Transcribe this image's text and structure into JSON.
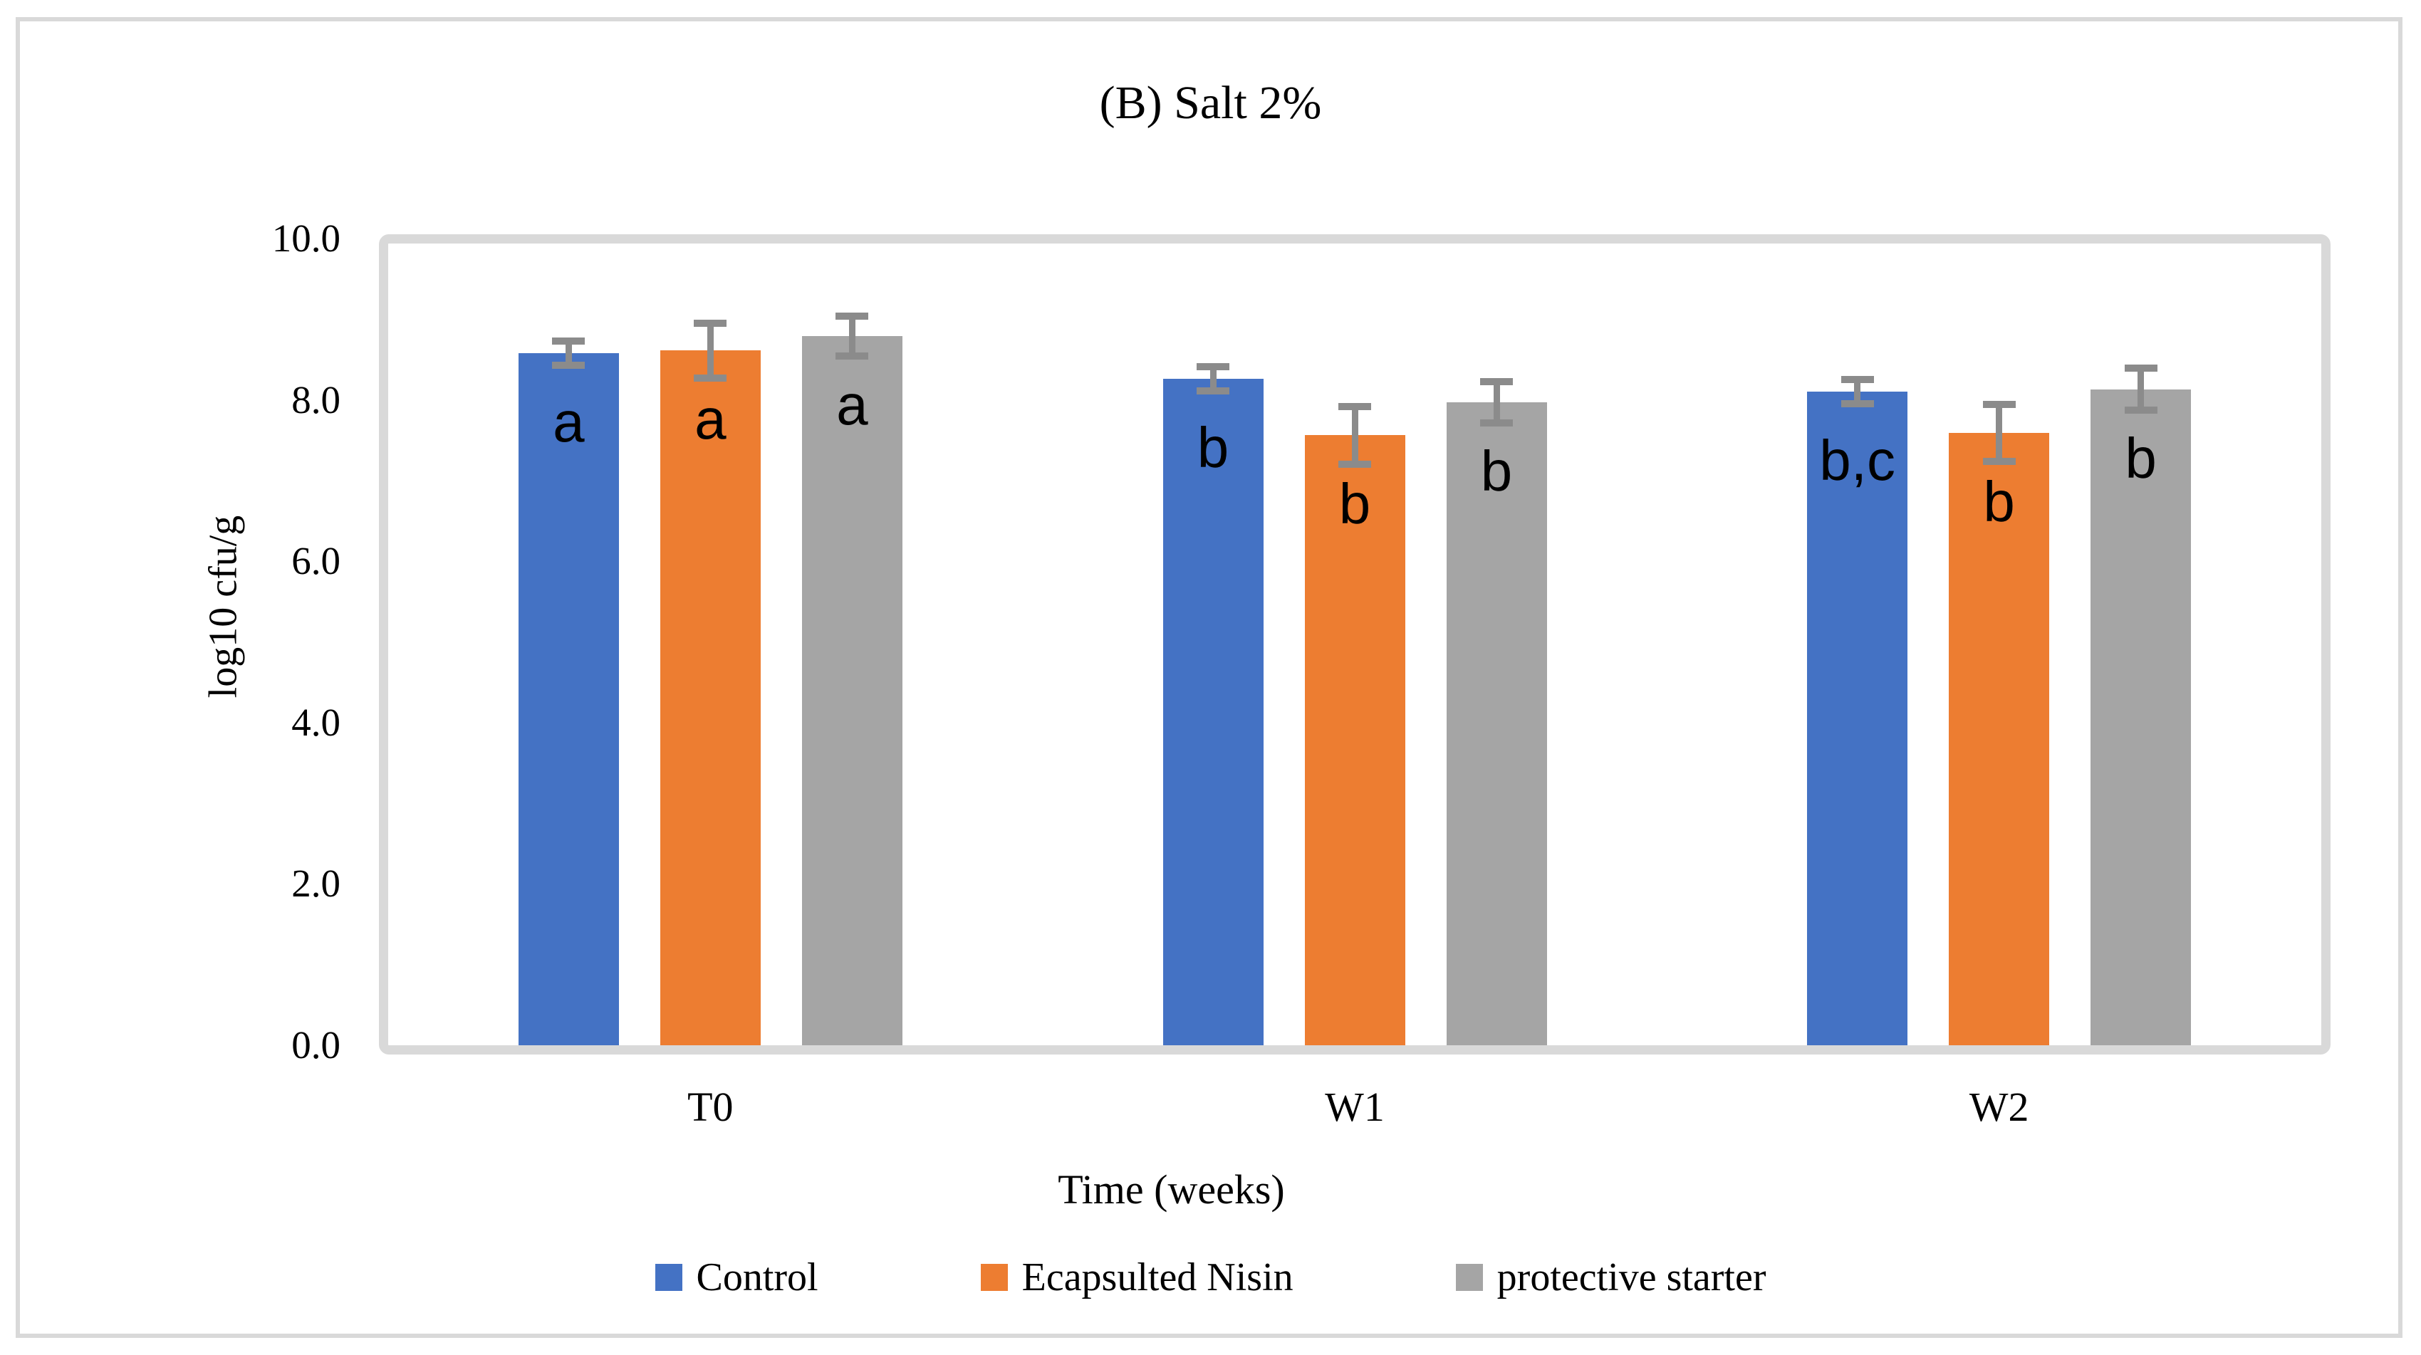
{
  "figure": {
    "title": "(B) Salt 2%"
  },
  "chart_data": {
    "type": "bar",
    "title": "(B) Salt 2%",
    "categories": [
      "T0",
      "W1",
      "W2"
    ],
    "series": [
      {
        "name": "Control",
        "color": "#4472C4",
        "values": [
          8.58,
          8.26,
          8.1
        ],
        "errors": [
          0.15,
          0.15,
          0.15
        ],
        "letters": [
          "a",
          "b",
          "b,c"
        ]
      },
      {
        "name": "Ecapsulted Nisin",
        "color": "#ED7D31",
        "values": [
          8.61,
          7.56,
          7.59
        ],
        "errors": [
          0.34,
          0.36,
          0.35
        ],
        "letters": [
          "a",
          "b",
          "b"
        ]
      },
      {
        "name": "protective starter",
        "color": "#A5A5A5",
        "values": [
          8.79,
          7.97,
          8.13
        ],
        "errors": [
          0.25,
          0.26,
          0.26
        ],
        "letters": [
          "a",
          "b",
          "b"
        ]
      }
    ],
    "xlabel": "Time (weeks)",
    "ylabel": "log10 cfu/g",
    "ylim": [
      0,
      10
    ],
    "ytick_labels": [
      "0.0",
      "2.0",
      "4.0",
      "6.0",
      "8.0",
      "10.0"
    ],
    "ytick_values": [
      0,
      2,
      4,
      6,
      8,
      10
    ],
    "grid": false,
    "legend_position": "bottom",
    "error_bar_color": "#8B8B8B",
    "frame_color": "#D9D9D9",
    "letter_color": "#000000"
  }
}
